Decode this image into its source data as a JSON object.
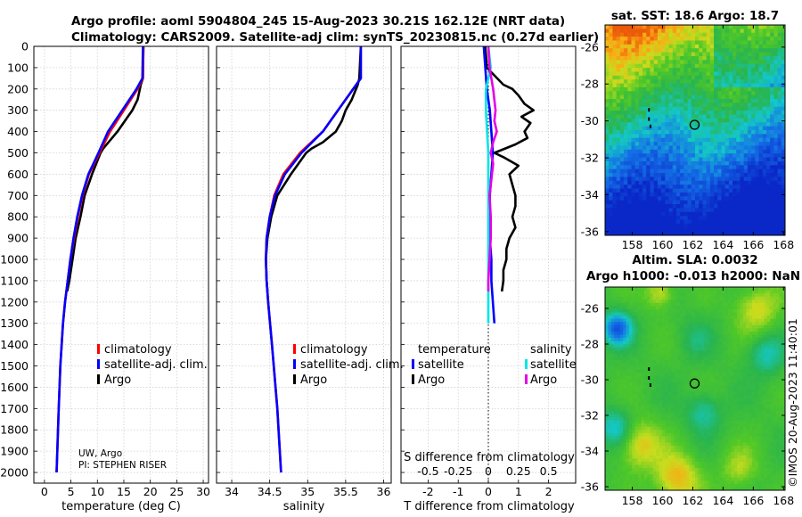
{
  "header": {
    "line1": "Argo profile: aoml 5904804_245 15-Aug-2023 30.21S 162.12E (NRT data)",
    "line2": "Climatology: CARS2009. Satellite-adj clim: synTS_20230815.nc (0.27d earlier)"
  },
  "colors": {
    "climatology": "#ff0000",
    "satellite": "#0000ff",
    "argo": "#000000",
    "sat_salinity": "#00e5e5",
    "argo_salinity": "#e600e6"
  },
  "chart_data": [
    {
      "type": "line",
      "name": "temperature profile",
      "xlabel": "temperature (deg C)",
      "xlim": [
        -2,
        31
      ],
      "xticks": [
        "0",
        "5",
        "10",
        "15",
        "20",
        "25",
        "30"
      ],
      "ylim": [
        0,
        2050
      ],
      "yticks": [
        "0",
        "100",
        "200",
        "300",
        "400",
        "500",
        "600",
        "700",
        "800",
        "900",
        "1000",
        "1100",
        "1200",
        "1300",
        "1400",
        "1500",
        "1600",
        "1700",
        "1800",
        "1900",
        "2000"
      ],
      "legend": [
        "climatology",
        "satellite-adj. clim.",
        "Argo"
      ],
      "annotation": [
        "UW, Argo",
        "PI: STEPHEN RISER"
      ],
      "series": [
        {
          "name": "climatology",
          "depth": [
            0,
            150,
            200,
            300,
            400,
            500,
            600,
            700,
            800,
            900,
            1000,
            1100,
            1200,
            1300,
            1500,
            1700,
            2000
          ],
          "values": [
            18.7,
            18.6,
            17.6,
            15.0,
            12.4,
            10.4,
            8.4,
            7.2,
            6.3,
            5.6,
            4.9,
            4.4,
            3.9,
            3.5,
            3.0,
            2.7,
            2.3
          ]
        },
        {
          "name": "satellite-adj. clim.",
          "depth": [
            0,
            150,
            200,
            300,
            400,
            500,
            600,
            700,
            800,
            900,
            1000,
            1100,
            1200,
            1300,
            1500,
            1700,
            2000
          ],
          "values": [
            18.6,
            18.5,
            17.4,
            14.7,
            12.0,
            10.2,
            8.3,
            7.1,
            6.2,
            5.5,
            4.9,
            4.4,
            3.9,
            3.5,
            3.0,
            2.7,
            2.3
          ]
        },
        {
          "name": "Argo",
          "depth": [
            0,
            150,
            180,
            250,
            300,
            400,
            480,
            500,
            600,
            700,
            800,
            900,
            1000,
            1100,
            1150
          ],
          "values": [
            18.7,
            18.6,
            18.2,
            17.6,
            16.6,
            13.8,
            11.1,
            10.6,
            9.0,
            7.6,
            6.8,
            5.9,
            5.3,
            4.7,
            4.3
          ]
        }
      ]
    },
    {
      "type": "line",
      "name": "salinity profile",
      "xlabel": "salinity",
      "xlim": [
        33.8,
        36.1
      ],
      "xticks": [
        "34",
        "34.5",
        "35",
        "35.5",
        "36"
      ],
      "ylim": [
        0,
        2050
      ],
      "legend": [
        "climatology",
        "satellite-adj. clim.",
        "Argo"
      ],
      "series": [
        {
          "name": "climatology",
          "depth": [
            0,
            150,
            200,
            300,
            400,
            500,
            600,
            700,
            800,
            900,
            1000,
            1100,
            1200,
            1400,
            1700,
            2000
          ],
          "values": [
            35.7,
            35.7,
            35.6,
            35.4,
            35.2,
            34.9,
            34.68,
            34.56,
            34.5,
            34.46,
            34.45,
            34.46,
            34.48,
            34.53,
            34.6,
            34.65
          ]
        },
        {
          "name": "satellite-adj. clim.",
          "depth": [
            0,
            150,
            200,
            300,
            400,
            500,
            600,
            700,
            800,
            900,
            1000,
            1100,
            1200,
            1400,
            1700,
            2000
          ],
          "values": [
            35.7,
            35.7,
            35.6,
            35.4,
            35.2,
            34.92,
            34.7,
            34.57,
            34.5,
            34.46,
            34.45,
            34.46,
            34.48,
            34.53,
            34.6,
            34.65
          ]
        },
        {
          "name": "Argo",
          "depth": [
            0,
            150,
            180,
            250,
            300,
            350,
            400,
            450,
            480,
            500,
            600,
            700,
            800,
            900,
            1000,
            1100,
            1150
          ],
          "values": [
            35.7,
            35.68,
            35.66,
            35.58,
            35.5,
            35.45,
            35.37,
            35.2,
            35.05,
            34.98,
            34.78,
            34.6,
            34.52,
            34.47,
            34.45,
            34.46,
            34.47
          ]
        }
      ]
    },
    {
      "type": "line",
      "name": "difference from climatology",
      "xlabel": "T difference from climatology",
      "xlabel_top": "S difference from climatology",
      "xlim": [
        -2.9,
        2.9
      ],
      "xticks": [
        "-2",
        "-1",
        "0",
        "1",
        "2"
      ],
      "xticks_top": [
        "-0.5",
        "-0.25",
        "0",
        "0.25",
        "0.5"
      ],
      "ylim": [
        0,
        2050
      ],
      "legend_temperature": {
        "title": "temperature",
        "items": [
          "satellite",
          "Argo"
        ]
      },
      "legend_salinity": {
        "title": "salinity",
        "items": [
          "satellite",
          "Argo"
        ]
      },
      "series": [
        {
          "name": "temperature satellite",
          "depth": [
            0,
            100,
            200,
            300,
            400,
            500,
            600,
            700,
            800,
            900,
            1000,
            1100,
            1200,
            1300
          ],
          "values": [
            -0.15,
            -0.1,
            -0.05,
            0.05,
            0.1,
            0.15,
            0.1,
            0.05,
            0.05,
            0.05,
            0.1,
            0.1,
            0.15,
            0.2
          ]
        },
        {
          "name": "temperature Argo",
          "depth": [
            0,
            100,
            180,
            200,
            230,
            270,
            300,
            330,
            360,
            400,
            430,
            460,
            500,
            520,
            560,
            600,
            650,
            700,
            750,
            800,
            850,
            900,
            950,
            1000,
            1050,
            1100,
            1150
          ],
          "values": [
            -0.1,
            -0.05,
            0.5,
            0.8,
            1.0,
            1.2,
            1.5,
            1.1,
            1.4,
            1.2,
            1.3,
            0.9,
            0.2,
            0.5,
            1.0,
            0.7,
            0.8,
            0.9,
            0.9,
            0.8,
            0.9,
            0.7,
            0.6,
            0.6,
            0.5,
            0.5,
            0.45
          ]
        },
        {
          "name": "salinity satellite",
          "depth": [
            0,
            100,
            200,
            300,
            400,
            500,
            600,
            700,
            800,
            900,
            1000,
            1100,
            1200,
            1300
          ],
          "values": [
            0.0,
            0.02,
            -0.02,
            -0.02,
            -0.01,
            0.0,
            0.0,
            0.0,
            0.0,
            0.0,
            0.0,
            0.0,
            0.0,
            0.0
          ]
        },
        {
          "name": "salinity Argo",
          "depth": [
            0,
            100,
            200,
            300,
            350,
            400,
            450,
            500,
            550,
            600,
            700,
            800,
            900,
            1000,
            1100,
            1150
          ],
          "values": [
            0.0,
            0.01,
            0.04,
            0.06,
            0.05,
            0.07,
            0.04,
            0.02,
            0.04,
            0.03,
            0.01,
            0.02,
            0.02,
            0.01,
            0.0,
            0.0
          ]
        }
      ]
    },
    {
      "type": "heatmap",
      "name": "satellite SST map",
      "title": "sat. SST: 18.6 Argo: 18.7",
      "xticks": [
        "158",
        "160",
        "162",
        "164",
        "166",
        "168"
      ],
      "yticks": [
        "-26",
        "-28",
        "-30",
        "-32",
        "-34",
        "-36"
      ],
      "xlim": [
        156.2,
        168.1
      ],
      "ylim": [
        -36.2,
        -24.8
      ],
      "argo_position": {
        "lon": 162.12,
        "lat": -30.21
      }
    },
    {
      "type": "heatmap",
      "name": "altimetry SLA map",
      "title_line1": "Altim. SLA: 0.0032",
      "title_line2": "Argo h1000: -0.013 h2000: NaN",
      "xticks": [
        "158",
        "160",
        "162",
        "164",
        "166",
        "168"
      ],
      "yticks": [
        "-26",
        "-28",
        "-30",
        "-32",
        "-34",
        "-36"
      ],
      "xlim": [
        156.2,
        168.1
      ],
      "ylim": [
        -36.2,
        -24.8
      ],
      "argo_position": {
        "lon": 162.12,
        "lat": -30.21
      }
    }
  ],
  "credit": "©IMOS 20-Aug-2023 11:40:01"
}
